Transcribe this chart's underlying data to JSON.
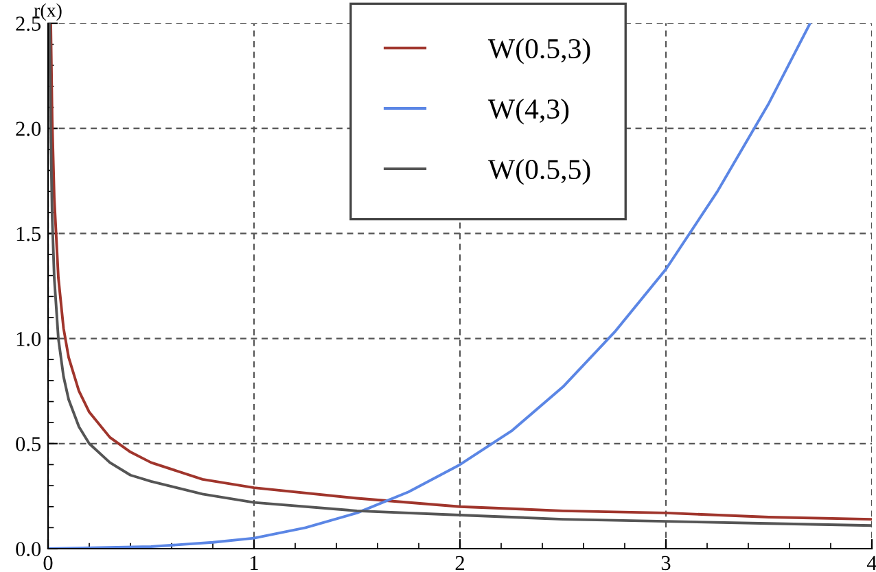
{
  "chart_data": {
    "type": "line",
    "ylabel": "r(x)",
    "xlim": [
      0,
      4
    ],
    "ylim": [
      0,
      2.5
    ],
    "xticks": [
      0,
      1,
      2,
      3,
      4
    ],
    "yticks": [
      {
        "value": 0,
        "label": "0.0"
      },
      {
        "value": 0.5,
        "label": "0.5"
      },
      {
        "value": 1,
        "label": "1.0"
      },
      {
        "value": 1.5,
        "label": "1.5"
      },
      {
        "value": 2,
        "label": "2.0"
      },
      {
        "value": 2.5,
        "label": "2.5"
      }
    ],
    "grid": true,
    "legend": "top",
    "marker": "none",
    "line_style": "solid",
    "series": [
      {
        "name": "W(0.5,3)",
        "color": "#a0352c",
        "x": [
          0.0134,
          0.02,
          0.03,
          0.05,
          0.075,
          0.1,
          0.15,
          0.2,
          0.3,
          0.4,
          0.5,
          0.75,
          1,
          1.5,
          2,
          2.5,
          3,
          3.5,
          4
        ],
        "values": [
          2.49,
          2.04,
          1.67,
          1.29,
          1.05,
          0.91,
          0.75,
          0.65,
          0.53,
          0.46,
          0.41,
          0.33,
          0.29,
          0.24,
          0.2,
          0.18,
          0.17,
          0.15,
          0.14
        ]
      },
      {
        "name": "W(4,3)",
        "color": "#5b86e5",
        "x": [
          0,
          0.5,
          0.8,
          1,
          1.25,
          1.5,
          1.75,
          2,
          2.25,
          2.5,
          2.75,
          3,
          3.25,
          3.5,
          3.7
        ],
        "values": [
          0,
          0.01,
          0.03,
          0.05,
          0.1,
          0.17,
          0.27,
          0.4,
          0.56,
          0.77,
          1.03,
          1.33,
          1.7,
          2.12,
          2.5
        ]
      },
      {
        "name": "W(0.5,5)",
        "color": "#555555",
        "x": [
          0.008,
          0.012,
          0.02,
          0.03,
          0.05,
          0.075,
          0.1,
          0.15,
          0.2,
          0.3,
          0.4,
          0.5,
          0.75,
          1,
          1.5,
          2,
          2.5,
          3,
          3.5,
          4
        ],
        "values": [
          2.5,
          2.04,
          1.58,
          1.29,
          1.0,
          0.82,
          0.71,
          0.58,
          0.5,
          0.41,
          0.35,
          0.32,
          0.26,
          0.22,
          0.18,
          0.16,
          0.14,
          0.13,
          0.12,
          0.11
        ]
      }
    ]
  }
}
